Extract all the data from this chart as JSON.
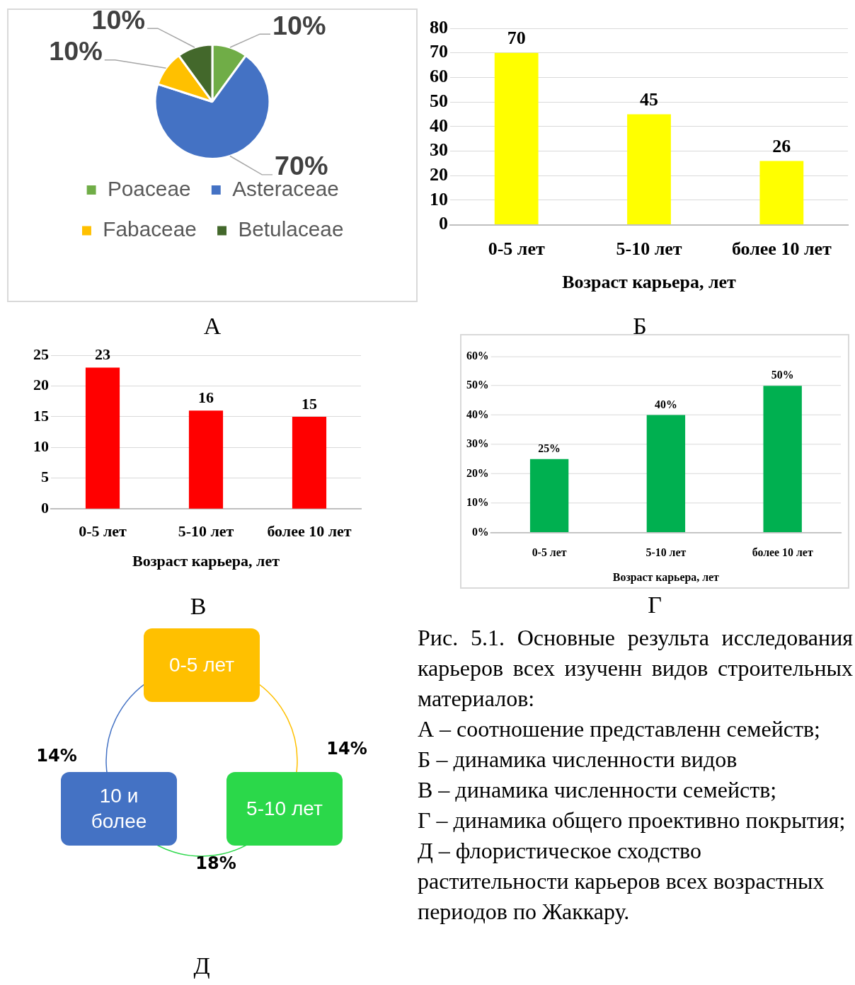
{
  "chart_data": [
    {
      "type": "pie",
      "categories": [
        "Poaceae",
        "Asteraceae",
        "Fabaceae",
        "Betulaceae"
      ],
      "values": [
        10,
        70,
        10,
        10
      ],
      "colors": [
        "#70ad47",
        "#4472c4",
        "#ffc000",
        "#43682b"
      ],
      "value_labels": [
        "10%",
        "70%",
        "10%",
        "10%"
      ],
      "legend": "bottom",
      "annotations": [
        "А"
      ]
    },
    {
      "type": "bar",
      "categories": [
        "0-5 лет",
        "5-10 лет",
        "более 10 лет"
      ],
      "values": [
        70,
        45,
        26
      ],
      "color": "#ffff00",
      "ylim": [
        0,
        80
      ],
      "yticks": [
        0,
        10,
        20,
        30,
        40,
        50,
        60,
        70,
        80
      ],
      "grid": "y",
      "xlabel": "Возраст карьера, лет",
      "data_labels": true,
      "annotations": [
        "Б"
      ]
    },
    {
      "type": "bar",
      "categories": [
        "0-5 лет",
        "5-10 лет",
        "более 10 лет"
      ],
      "values": [
        23,
        16,
        15
      ],
      "color": "#ff0000",
      "ylim": [
        0,
        25
      ],
      "yticks": [
        0,
        5,
        10,
        15,
        20,
        25
      ],
      "grid": "y",
      "xlabel": "Возраст карьера, лет",
      "data_labels": true,
      "annotations": [
        "В"
      ]
    },
    {
      "type": "bar",
      "categories": [
        "0-5 лет",
        "5-10 лет",
        "более 10 лет"
      ],
      "values": [
        25,
        40,
        50
      ],
      "color": "#00b050",
      "ylim": [
        0,
        60
      ],
      "yticks": [
        {
          "value": 0,
          "label": "0%"
        },
        {
          "value": 10,
          "label": "10%"
        },
        {
          "value": 20,
          "label": "20%"
        },
        {
          "value": 30,
          "label": "30%"
        },
        {
          "value": 40,
          "label": "40%"
        },
        {
          "value": 50,
          "label": "50%"
        },
        {
          "value": 60,
          "label": "60%"
        }
      ],
      "grid": "y",
      "xlabel": "Возраст карьера, лет",
      "value_labels": [
        "25%",
        "40%",
        "50%"
      ],
      "annotations": [
        "Г"
      ]
    },
    {
      "type": "other",
      "categories": [
        "0-5 лет",
        "5-10 лет",
        "10 и более"
      ],
      "colors": [
        "#ffc000",
        "#2bd84a",
        "#4472c4"
      ],
      "annotations": [
        "14%",
        "18%",
        "14%",
        "Д"
      ]
    },
    {
      "type": "other",
      "annotations": [
        "Рис. 5.1. Основные результа исследования карьеров всех изученн видов строительных материалов:",
        "А – соотношение представленн семейств;",
        "Б – динамика численности видов",
        "В – динамика численности семейств;",
        "Г – динамика общего проективно покрытия;",
        "Д – флористическое сходство растительности карьеров всех возрастных периодов по Жаккару."
      ]
    }
  ]
}
